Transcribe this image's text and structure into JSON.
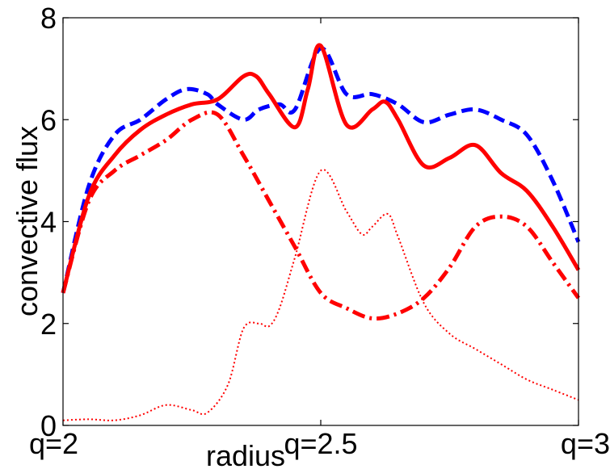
{
  "chart_data": {
    "type": "line",
    "title": "",
    "xlabel": "radius",
    "ylabel": "convective flux",
    "xlim": [
      2,
      3
    ],
    "ylim": [
      0,
      8
    ],
    "grid": false,
    "x_ticks": [
      {
        "value": 2,
        "label": "q=2"
      },
      {
        "value": 2.5,
        "label": "q=2.5"
      },
      {
        "value": 3,
        "label": "q=3"
      }
    ],
    "y_ticks": [
      {
        "value": 0,
        "label": "0"
      },
      {
        "value": 2,
        "label": "2"
      },
      {
        "value": 4,
        "label": "4"
      },
      {
        "value": 6,
        "label": "6"
      },
      {
        "value": 8,
        "label": "8"
      }
    ],
    "series": [
      {
        "color": "#0000ff",
        "style": "dashed",
        "width": 5,
        "x": [
          2.0,
          2.05,
          2.1,
          2.15,
          2.2,
          2.24,
          2.28,
          2.3,
          2.35,
          2.38,
          2.42,
          2.45,
          2.5,
          2.55,
          2.6,
          2.65,
          2.7,
          2.75,
          2.8,
          2.85,
          2.9,
          2.95,
          3.0
        ],
        "y": [
          2.6,
          4.7,
          5.7,
          6.0,
          6.4,
          6.6,
          6.5,
          6.3,
          6.0,
          6.2,
          6.3,
          6.2,
          7.4,
          6.5,
          6.5,
          6.3,
          5.95,
          6.1,
          6.2,
          6.0,
          5.7,
          4.8,
          3.6
        ]
      },
      {
        "color": "#ff0000",
        "style": "solid",
        "width": 5,
        "x": [
          2.0,
          2.05,
          2.1,
          2.15,
          2.2,
          2.25,
          2.3,
          2.35,
          2.375,
          2.4,
          2.45,
          2.475,
          2.5,
          2.55,
          2.6,
          2.625,
          2.65,
          2.7,
          2.75,
          2.8,
          2.85,
          2.9,
          2.95,
          3.0
        ],
        "y": [
          2.6,
          4.5,
          5.3,
          5.8,
          6.1,
          6.3,
          6.4,
          6.85,
          6.85,
          6.5,
          5.85,
          6.6,
          7.45,
          5.9,
          6.2,
          6.35,
          6.0,
          5.1,
          5.25,
          5.5,
          4.95,
          4.6,
          3.9,
          3.05
        ]
      },
      {
        "color": "#ff0000",
        "style": "dash-dot",
        "width": 5,
        "x": [
          2.0,
          2.05,
          2.1,
          2.15,
          2.2,
          2.25,
          2.3,
          2.35,
          2.4,
          2.45,
          2.5,
          2.55,
          2.6,
          2.65,
          2.7,
          2.75,
          2.8,
          2.85,
          2.9,
          2.95,
          3.0
        ],
        "y": [
          2.6,
          4.4,
          5.0,
          5.3,
          5.6,
          6.0,
          6.1,
          5.3,
          4.4,
          3.5,
          2.6,
          2.3,
          2.1,
          2.2,
          2.5,
          3.1,
          3.9,
          4.1,
          3.9,
          3.2,
          2.5
        ]
      },
      {
        "color": "#ff0000",
        "style": "dotted",
        "width": 2,
        "x": [
          2.0,
          2.05,
          2.1,
          2.15,
          2.2,
          2.25,
          2.28,
          2.32,
          2.35,
          2.38,
          2.4,
          2.42,
          2.45,
          2.5,
          2.55,
          2.58,
          2.6,
          2.63,
          2.65,
          2.7,
          2.75,
          2.8,
          2.85,
          2.9,
          2.95,
          3.0
        ],
        "y": [
          0.1,
          0.12,
          0.1,
          0.2,
          0.4,
          0.3,
          0.25,
          0.8,
          1.9,
          2.0,
          1.95,
          2.3,
          3.3,
          5.0,
          4.2,
          3.75,
          3.9,
          4.15,
          3.7,
          2.4,
          1.8,
          1.5,
          1.2,
          0.9,
          0.7,
          0.5
        ]
      }
    ]
  }
}
